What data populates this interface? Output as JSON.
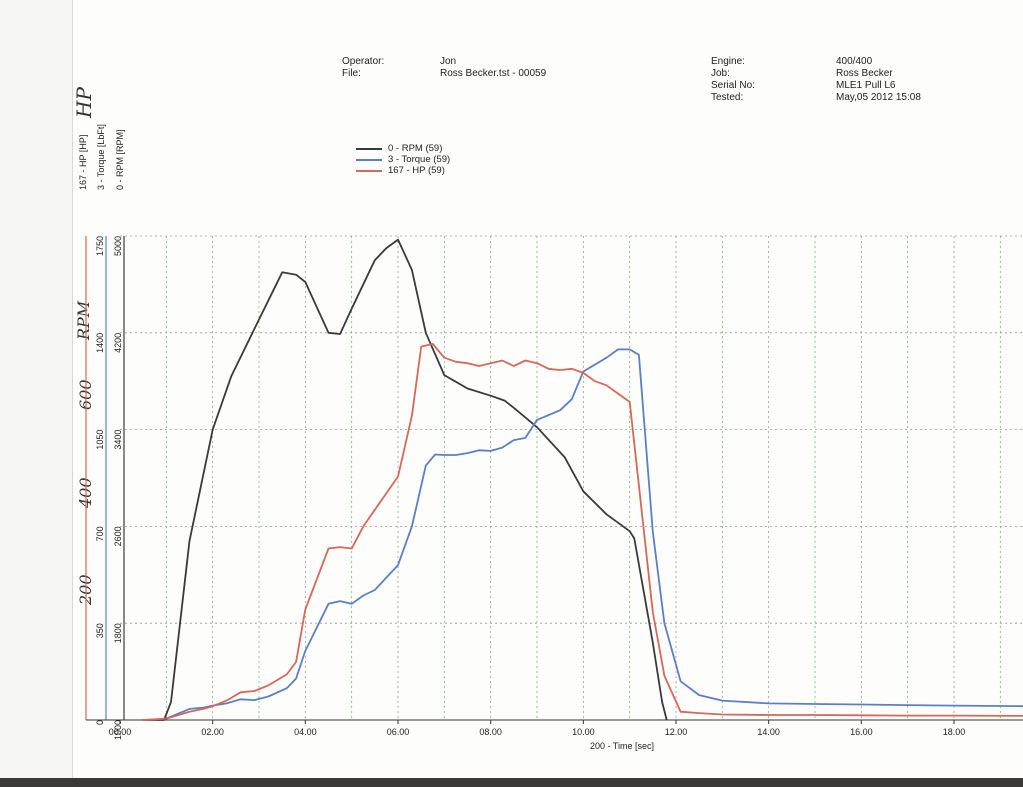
{
  "header": {
    "operator_label": "Operator:",
    "operator_value": "Jon",
    "file_label": "File:",
    "file_value": "Ross Becker.tst - 00059",
    "engine_label": "Engine:",
    "engine_value": "400/400",
    "job_label": "Job:",
    "job_value": "Ross Becker",
    "serial_label": "Serial No:",
    "serial_value": "MLE1 Pull L6",
    "tested_label": "Tested:",
    "tested_value": "May,05 2012 15:08"
  },
  "axis_titles": {
    "hp": "167 - HP [HP]",
    "torque": "3 - Torque [LbFt]",
    "rpm": "0 - RPM [RPM]"
  },
  "handwriting": {
    "top": "HP",
    "middle": "RPM",
    "n600": "600",
    "n400": "400",
    "n200": "200"
  },
  "colors": {
    "rpm": "#3a3a3a",
    "torque": "#5b7fc7",
    "hp": "#d4685a",
    "grid": "#9a9a9a",
    "grid_green": "#6fb86f"
  },
  "chart_data": {
    "type": "line",
    "xlabel": "200 - Time [sec]",
    "xlim": [
      0,
      19.5
    ],
    "x_ticks": [
      "00.00",
      "02.00",
      "04.00",
      "06.00",
      "08.00",
      "10.00",
      "12.00",
      "14.00",
      "16.00",
      "18.00"
    ],
    "axes": {
      "rpm": {
        "ylim": [
          1000,
          5000
        ],
        "ticks": [
          "1000",
          "1800",
          "2600",
          "3400",
          "4200",
          "5000"
        ]
      },
      "torque": {
        "ylim": [
          0,
          1750
        ],
        "ticks": [
          "0",
          "350",
          "700",
          "1050",
          "1400",
          "1750"
        ]
      }
    },
    "legend": [
      "0 - RPM (59)",
      "3 - Torque  (59)",
      "167 - HP (59)"
    ],
    "series": [
      {
        "name": "0 - RPM (59)",
        "axis": "rpm",
        "points": [
          [
            0.5,
            1000
          ],
          [
            0.95,
            1000
          ],
          [
            1.1,
            1150
          ],
          [
            1.5,
            2480
          ],
          [
            2.0,
            3400
          ],
          [
            2.4,
            3840
          ],
          [
            3.0,
            4310
          ],
          [
            3.5,
            4700
          ],
          [
            3.8,
            4680
          ],
          [
            4.0,
            4620
          ],
          [
            4.5,
            4200
          ],
          [
            4.75,
            4190
          ],
          [
            5.0,
            4400
          ],
          [
            5.5,
            4800
          ],
          [
            5.75,
            4900
          ],
          [
            6.0,
            4970
          ],
          [
            6.3,
            4720
          ],
          [
            6.6,
            4200
          ],
          [
            7.0,
            3850
          ],
          [
            7.5,
            3740
          ],
          [
            8.0,
            3680
          ],
          [
            8.3,
            3640
          ],
          [
            8.5,
            3580
          ],
          [
            9.0,
            3420
          ],
          [
            9.6,
            3170
          ],
          [
            10.0,
            2890
          ],
          [
            10.5,
            2700
          ],
          [
            11.0,
            2560
          ],
          [
            11.1,
            2500
          ],
          [
            11.5,
            1640
          ],
          [
            11.7,
            1150
          ],
          [
            11.8,
            1000
          ]
        ]
      },
      {
        "name": "3 - Torque  (59)",
        "axis": "torque",
        "points": [
          [
            0.5,
            0
          ],
          [
            1.0,
            5
          ],
          [
            1.5,
            40
          ],
          [
            1.8,
            45
          ],
          [
            2.0,
            52
          ],
          [
            2.3,
            60
          ],
          [
            2.6,
            75
          ],
          [
            2.9,
            72
          ],
          [
            3.2,
            85
          ],
          [
            3.6,
            115
          ],
          [
            3.8,
            150
          ],
          [
            4.0,
            250
          ],
          [
            4.5,
            420
          ],
          [
            4.75,
            430
          ],
          [
            5.0,
            420
          ],
          [
            5.25,
            450
          ],
          [
            5.5,
            470
          ],
          [
            6.0,
            560
          ],
          [
            6.3,
            700
          ],
          [
            6.6,
            920
          ],
          [
            6.8,
            960
          ],
          [
            7.0,
            958
          ],
          [
            7.25,
            958
          ],
          [
            7.5,
            965
          ],
          [
            7.75,
            975
          ],
          [
            8.0,
            973
          ],
          [
            8.25,
            985
          ],
          [
            8.5,
            1012
          ],
          [
            8.75,
            1020
          ],
          [
            9.0,
            1085
          ],
          [
            9.5,
            1120
          ],
          [
            9.75,
            1160
          ],
          [
            10.0,
            1260
          ],
          [
            10.5,
            1310
          ],
          [
            10.75,
            1340
          ],
          [
            11.0,
            1340
          ],
          [
            11.2,
            1320
          ],
          [
            11.5,
            680
          ],
          [
            11.75,
            350
          ],
          [
            12.1,
            140
          ],
          [
            12.5,
            90
          ],
          [
            13.0,
            70
          ],
          [
            14.0,
            60
          ],
          [
            15.0,
            58
          ],
          [
            16.0,
            56
          ],
          [
            17.0,
            54
          ],
          [
            18.0,
            52
          ],
          [
            19.5,
            50
          ]
        ]
      },
      {
        "name": "167 - HP (59)",
        "axis": "torque",
        "points": [
          [
            0.5,
            0
          ],
          [
            1.0,
            5
          ],
          [
            1.5,
            30
          ],
          [
            1.8,
            40
          ],
          [
            2.0,
            50
          ],
          [
            2.3,
            70
          ],
          [
            2.6,
            100
          ],
          [
            2.9,
            105
          ],
          [
            3.2,
            125
          ],
          [
            3.6,
            165
          ],
          [
            3.8,
            210
          ],
          [
            4.0,
            400
          ],
          [
            4.5,
            620
          ],
          [
            4.75,
            625
          ],
          [
            5.0,
            620
          ],
          [
            5.25,
            700
          ],
          [
            5.5,
            760
          ],
          [
            6.0,
            880
          ],
          [
            6.3,
            1100
          ],
          [
            6.5,
            1350
          ],
          [
            6.75,
            1360
          ],
          [
            7.0,
            1310
          ],
          [
            7.25,
            1295
          ],
          [
            7.5,
            1290
          ],
          [
            7.75,
            1280
          ],
          [
            8.0,
            1290
          ],
          [
            8.25,
            1300
          ],
          [
            8.5,
            1280
          ],
          [
            8.75,
            1300
          ],
          [
            9.0,
            1290
          ],
          [
            9.25,
            1270
          ],
          [
            9.5,
            1265
          ],
          [
            9.75,
            1270
          ],
          [
            10.0,
            1255
          ],
          [
            10.25,
            1225
          ],
          [
            10.5,
            1210
          ],
          [
            10.75,
            1180
          ],
          [
            11.0,
            1150
          ],
          [
            11.5,
            390
          ],
          [
            11.75,
            160
          ],
          [
            12.1,
            30
          ],
          [
            12.5,
            25
          ],
          [
            13.0,
            20
          ],
          [
            14.0,
            18
          ],
          [
            15.0,
            18
          ],
          [
            16.0,
            17
          ],
          [
            17.0,
            16
          ],
          [
            18.0,
            16
          ],
          [
            19.5,
            15
          ]
        ]
      }
    ]
  }
}
